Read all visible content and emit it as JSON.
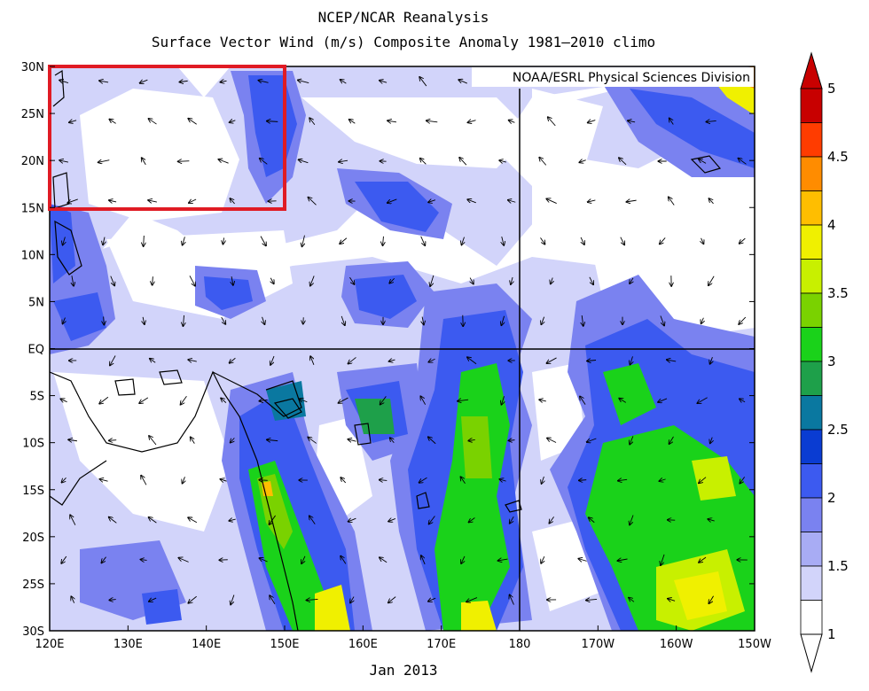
{
  "title_line1": "NCEP/NCAR Reanalysis",
  "title_line2": "Surface Vector Wind (m/s) Composite Anomaly 1981–2010 climo",
  "credit": "NOAA/ESRL Physical Sciences Division",
  "date_label": "Jan 2013",
  "lat_labels": [
    "30N",
    "25N",
    "20N",
    "15N",
    "10N",
    "5N",
    "EQ",
    "5S",
    "10S",
    "15S",
    "20S",
    "25S",
    "30S"
  ],
  "lon_labels": [
    "120E",
    "130E",
    "140E",
    "150E",
    "160E",
    "170E",
    "180",
    "170W",
    "160W",
    "150W"
  ],
  "colorbar": {
    "labels": [
      "5",
      "4.5",
      "4",
      "3.5",
      "3",
      "2.5",
      "2",
      "1.5",
      "1"
    ],
    "colors": [
      "#c80000",
      "#ff3c00",
      "#ff8c00",
      "#ffbe00",
      "#f0f000",
      "#c8f000",
      "#7ad200",
      "#1ad21a",
      "#1ea04a",
      "#0a78a0",
      "#0a3cd2",
      "#3c5af0",
      "#7a82f0",
      "#a8acf4",
      "#d2d4fa",
      "#ffffff"
    ]
  },
  "highlight_box": {
    "color": "#e01b24"
  },
  "colors": {
    "anomaly_low": "#d2d4fa",
    "anomaly_mid": "#3c5af0",
    "anomaly_high": "#1ad21a",
    "land_outline": "#000000"
  }
}
